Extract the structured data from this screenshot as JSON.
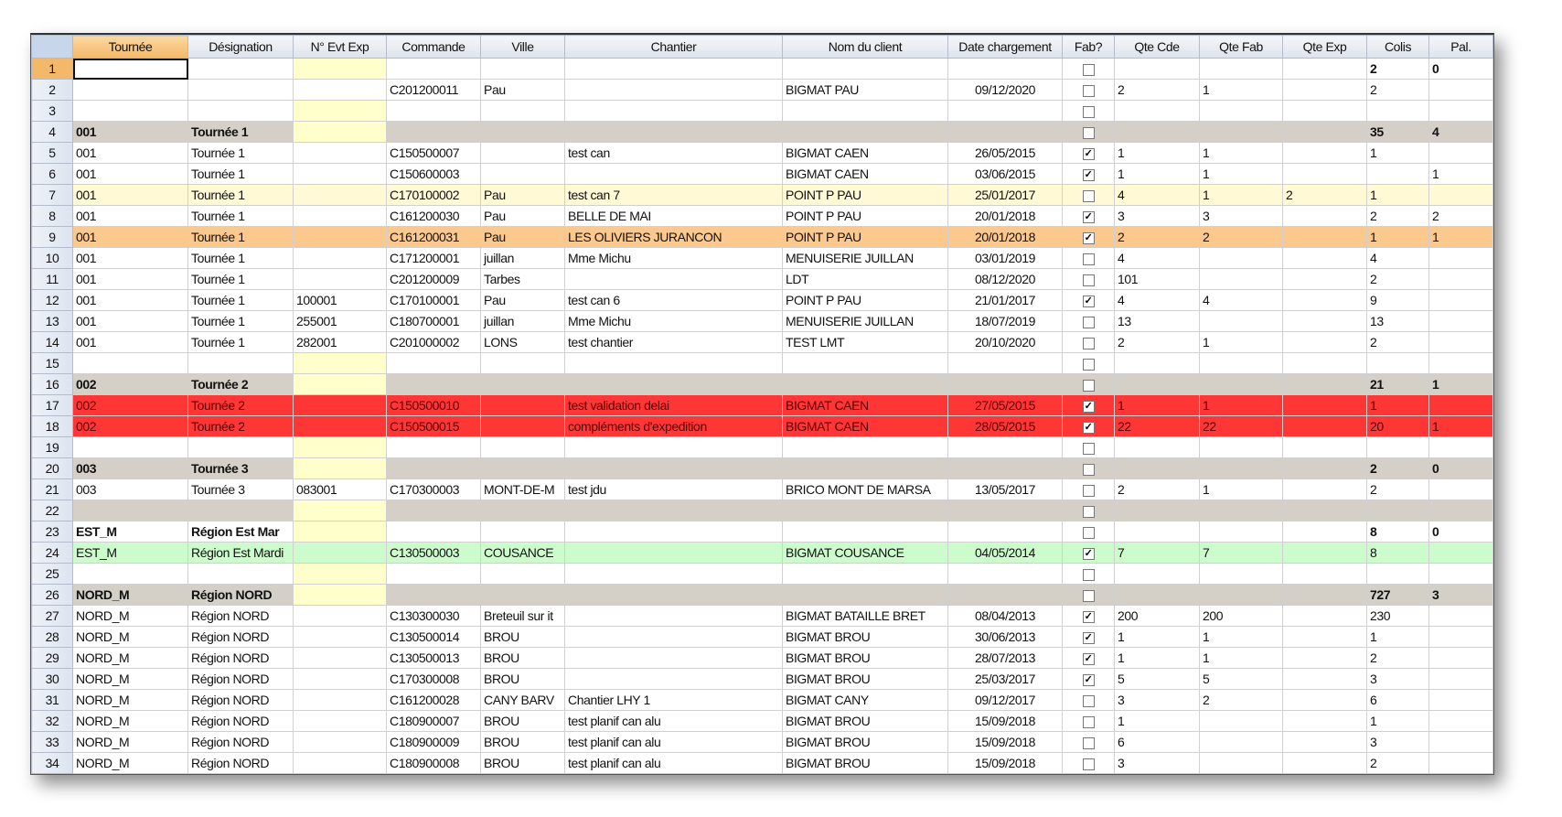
{
  "columns": [
    "Tournée",
    "Désignation",
    "N° Evt Exp",
    "Commande",
    "Ville",
    "Chantier",
    "Nom du client",
    "Date chargement",
    "Fab?",
    "Qte Cde",
    "Qte Fab",
    "Qte Exp",
    "Colis",
    "Pal."
  ],
  "colors": {
    "group": "#d4d0c8",
    "evt_empty": "#ffffcc",
    "highlight_yellow": "#fff9d6",
    "orange": "#fbc88e",
    "red": "#ff3636",
    "green": "#ccfccc",
    "selected_header": "#f3b86a"
  },
  "rows": [
    {
      "n": "1",
      "style": "",
      "ev": true,
      "cells": [
        "",
        "",
        "",
        "",
        "",
        "",
        "",
        "",
        "",
        "",
        "",
        "",
        "2",
        "0"
      ],
      "fab": false,
      "bold_totals": true
    },
    {
      "n": "2",
      "style": "",
      "cells": [
        "",
        "",
        "",
        "C201200011",
        "Pau",
        "",
        "BIGMAT PAU",
        "09/12/2020",
        "",
        "2",
        "1",
        "",
        "2",
        ""
      ],
      "fab": false
    },
    {
      "n": "3",
      "style": "",
      "ev": true,
      "cells": [
        "",
        "",
        "",
        "",
        "",
        "",
        "",
        "",
        "",
        "",
        "",
        "",
        "",
        ""
      ],
      "fab": false
    },
    {
      "n": "4",
      "style": "group",
      "ev": true,
      "cells": [
        "001",
        "Tournée 1",
        "",
        "",
        "",
        "",
        "",
        "",
        "",
        "",
        "",
        "",
        "35",
        "4"
      ],
      "fab": false
    },
    {
      "n": "5",
      "style": "",
      "cells": [
        "001",
        "Tournée 1",
        "",
        "C150500007",
        "",
        "test can",
        "BIGMAT CAEN",
        "26/05/2015",
        "",
        "1",
        "1",
        "",
        "1",
        ""
      ],
      "fab": true
    },
    {
      "n": "6",
      "style": "",
      "cells": [
        "001",
        "Tournée 1",
        "",
        "C150600003",
        "",
        "",
        "BIGMAT CAEN",
        "03/06/2015",
        "",
        "1",
        "1",
        "",
        "",
        "1"
      ],
      "fab": true
    },
    {
      "n": "7",
      "style": "yel",
      "cells": [
        "001",
        "Tournée 1",
        "",
        "C170100002",
        "Pau",
        "test can 7",
        "POINT P PAU",
        "25/01/2017",
        "",
        "4",
        "1",
        "2",
        "1",
        ""
      ],
      "fab": false
    },
    {
      "n": "8",
      "style": "",
      "cells": [
        "001",
        "Tournée 1",
        "",
        "C161200030",
        "Pau",
        "BELLE DE MAI",
        "POINT P PAU",
        "20/01/2018",
        "",
        "3",
        "3",
        "",
        "2",
        "2"
      ],
      "fab": true
    },
    {
      "n": "9",
      "style": "orange",
      "cells": [
        "001",
        "Tournée 1",
        "",
        "C161200031",
        "Pau",
        "LES OLIVIERS JURANCON",
        "POINT P PAU",
        "20/01/2018",
        "",
        "2",
        "2",
        "",
        "1",
        "1"
      ],
      "fab": true
    },
    {
      "n": "10",
      "style": "",
      "cells": [
        "001",
        "Tournée 1",
        "",
        "C171200001",
        "juillan",
        "Mme Michu",
        "MENUISERIE JUILLAN",
        "03/01/2019",
        "",
        "4",
        "",
        "",
        "4",
        ""
      ],
      "fab": false
    },
    {
      "n": "11",
      "style": "",
      "cells": [
        "001",
        "Tournée 1",
        "",
        "C201200009",
        "Tarbes",
        "",
        "LDT",
        "08/12/2020",
        "",
        "101",
        "",
        "",
        "2",
        ""
      ],
      "fab": false
    },
    {
      "n": "12",
      "style": "",
      "cells": [
        "001",
        "Tournée 1",
        "100001",
        "C170100001",
        "Pau",
        "test can 6",
        "POINT P PAU",
        "21/01/2017",
        "",
        "4",
        "4",
        "",
        "9",
        ""
      ],
      "fab": true
    },
    {
      "n": "13",
      "style": "",
      "cells": [
        "001",
        "Tournée 1",
        "255001",
        "C180700001",
        "juillan",
        "Mme Michu",
        "MENUISERIE JUILLAN",
        "18/07/2019",
        "",
        "13",
        "",
        "",
        "13",
        ""
      ],
      "fab": false
    },
    {
      "n": "14",
      "style": "",
      "cells": [
        "001",
        "Tournée 1",
        "282001",
        "C201000002",
        "LONS",
        "test chantier",
        "TEST LMT",
        "20/10/2020",
        "",
        "2",
        "1",
        "",
        "2",
        ""
      ],
      "fab": false
    },
    {
      "n": "15",
      "style": "",
      "ev": true,
      "cells": [
        "",
        "",
        "",
        "",
        "",
        "",
        "",
        "",
        "",
        "",
        "",
        "",
        "",
        ""
      ],
      "fab": false
    },
    {
      "n": "16",
      "style": "group",
      "ev": true,
      "cells": [
        "002",
        "Tournée 2",
        "",
        "",
        "",
        "",
        "",
        "",
        "",
        "",
        "",
        "",
        "21",
        "1"
      ],
      "fab": false
    },
    {
      "n": "17",
      "style": "red",
      "cells": [
        "002",
        "Tournée 2",
        "",
        "C150500010",
        "",
        "test validation delai",
        "BIGMAT CAEN",
        "27/05/2015",
        "",
        "1",
        "1",
        "",
        "1",
        ""
      ],
      "fab": true
    },
    {
      "n": "18",
      "style": "red",
      "cells": [
        "002",
        "Tournée 2",
        "",
        "C150500015",
        "",
        "compléments d'expedition",
        "BIGMAT CAEN",
        "28/05/2015",
        "",
        "22",
        "22",
        "",
        "20",
        "1"
      ],
      "fab": true
    },
    {
      "n": "19",
      "style": "",
      "ev": true,
      "cells": [
        "",
        "",
        "",
        "",
        "",
        "",
        "",
        "",
        "",
        "",
        "",
        "",
        "",
        ""
      ],
      "fab": false
    },
    {
      "n": "20",
      "style": "group",
      "ev": true,
      "cells": [
        "003",
        "Tournée 3",
        "",
        "",
        "",
        "",
        "",
        "",
        "",
        "",
        "",
        "",
        "2",
        "0"
      ],
      "fab": false
    },
    {
      "n": "21",
      "style": "",
      "cells": [
        "003",
        "Tournée 3",
        "083001",
        "C170300003",
        "MONT-DE-M",
        "test jdu",
        "BRICO MONT DE MARSA",
        "13/05/2017",
        "",
        "2",
        "1",
        "",
        "2",
        ""
      ],
      "fab": false
    },
    {
      "n": "22",
      "style": "grey",
      "ev": true,
      "cells": [
        "",
        "",
        "",
        "",
        "",
        "",
        "",
        "",
        "",
        "",
        "",
        "",
        "",
        ""
      ],
      "fab": false
    },
    {
      "n": "23",
      "style": "groupw",
      "ev": true,
      "cells": [
        "EST_M",
        "Région Est Mar",
        "",
        "",
        "",
        "",
        "",
        "",
        "",
        "",
        "",
        "",
        "8",
        "0"
      ],
      "fab": false
    },
    {
      "n": "24",
      "style": "green",
      "cells": [
        "EST_M",
        "Région Est Mardi",
        "",
        "C130500003",
        "COUSANCE",
        "",
        "BIGMAT COUSANCE",
        "04/05/2014",
        "",
        "7",
        "7",
        "",
        "8",
        ""
      ],
      "fab": true
    },
    {
      "n": "25",
      "style": "",
      "ev": true,
      "cells": [
        "",
        "",
        "",
        "",
        "",
        "",
        "",
        "",
        "",
        "",
        "",
        "",
        "",
        ""
      ],
      "fab": false
    },
    {
      "n": "26",
      "style": "group",
      "ev": true,
      "cells": [
        "NORD_M",
        "Région NORD",
        "",
        "",
        "",
        "",
        "",
        "",
        "",
        "",
        "",
        "",
        "727",
        "3"
      ],
      "fab": false
    },
    {
      "n": "27",
      "style": "",
      "cells": [
        "NORD_M",
        "Région NORD",
        "",
        "C130300030",
        "Breteuil sur it",
        "",
        "BIGMAT BATAILLE BRET",
        "08/04/2013",
        "",
        "200",
        "200",
        "",
        "230",
        ""
      ],
      "fab": true
    },
    {
      "n": "28",
      "style": "",
      "cells": [
        "NORD_M",
        "Région NORD",
        "",
        "C130500014",
        "BROU",
        "",
        "BIGMAT BROU",
        "30/06/2013",
        "",
        "1",
        "1",
        "",
        "1",
        ""
      ],
      "fab": true
    },
    {
      "n": "29",
      "style": "",
      "cells": [
        "NORD_M",
        "Région NORD",
        "",
        "C130500013",
        "BROU",
        "",
        "BIGMAT BROU",
        "28/07/2013",
        "",
        "1",
        "1",
        "",
        "2",
        ""
      ],
      "fab": true
    },
    {
      "n": "30",
      "style": "",
      "cells": [
        "NORD_M",
        "Région NORD",
        "",
        "C170300008",
        "BROU",
        "",
        "BIGMAT BROU",
        "25/03/2017",
        "",
        "5",
        "5",
        "",
        "3",
        ""
      ],
      "fab": true
    },
    {
      "n": "31",
      "style": "",
      "cells": [
        "NORD_M",
        "Région NORD",
        "",
        "C161200028",
        "CANY BARV",
        "Chantier LHY 1",
        "BIGMAT CANY",
        "09/12/2017",
        "",
        "3",
        "2",
        "",
        "6",
        ""
      ],
      "fab": false
    },
    {
      "n": "32",
      "style": "",
      "cells": [
        "NORD_M",
        "Région NORD",
        "",
        "C180900007",
        "BROU",
        "test planif can alu",
        "BIGMAT BROU",
        "15/09/2018",
        "",
        "1",
        "",
        "",
        "1",
        ""
      ],
      "fab": false
    },
    {
      "n": "33",
      "style": "",
      "cells": [
        "NORD_M",
        "Région NORD",
        "",
        "C180900009",
        "BROU",
        "test planif can alu",
        "BIGMAT BROU",
        "15/09/2018",
        "",
        "6",
        "",
        "",
        "3",
        ""
      ],
      "fab": false
    },
    {
      "n": "34",
      "style": "",
      "cells": [
        "NORD_M",
        "Région NORD",
        "",
        "C180900008",
        "BROU",
        "test planif can alu",
        "BIGMAT BROU",
        "15/09/2018",
        "",
        "3",
        "",
        "",
        "2",
        ""
      ],
      "fab": false
    }
  ]
}
